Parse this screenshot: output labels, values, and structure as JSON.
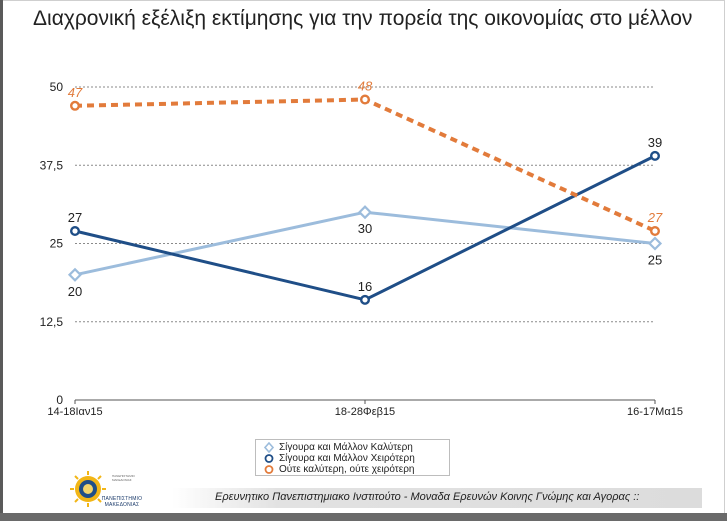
{
  "title": "Διαχρονική εξέλιξη εκτίμησης για την πορεία της οικονομίας στο μέλλον",
  "footer": "Ερευνητικο Πανεπιστημιακο Ινστιτούτο - Μοναδα Ερευνών Κοινης Γνώμης και Αγορας ::",
  "logo": {
    "name": "ΠΑΝΕΠΙΣΤΗΜΙΟ ΜΑΚΕΔΟΝΙΑΣ",
    "line1": "ΠΑΝΕΠΙΣΤΗΜΙΟ",
    "line2": "ΜΑΚΕΔΟΝΙΑΣ"
  },
  "chart_data": {
    "type": "line",
    "title": "Διαχρονική εξέλιξη εκτίμησης για την πορεία της οικονομίας στο μέλλον",
    "categories": [
      "14-18Ιαν15",
      "18-28Φεβ15",
      "16-17Μα15"
    ],
    "ylim": [
      0,
      50
    ],
    "yticks": [
      0,
      12.5,
      25,
      37.5,
      50
    ],
    "ytick_labels": [
      "0",
      "12,5",
      "25",
      "37,5",
      "50"
    ],
    "grid": true,
    "legend_position": "bottom-center",
    "series": [
      {
        "name": "Σίγουρα και Μάλλον Καλύτερη",
        "values": [
          20,
          30,
          25
        ],
        "labels": [
          "20",
          "30",
          "25"
        ],
        "color": "#9cbcdc",
        "marker": "diamond",
        "dashed": false,
        "label_pos": [
          "below",
          "below",
          "below"
        ],
        "italic": false
      },
      {
        "name": "Σίγουρα και Μάλλον Χειρότερη",
        "values": [
          27,
          16,
          39
        ],
        "labels": [
          "27",
          "16",
          "39"
        ],
        "color": "#1f4e87",
        "marker": "circle",
        "dashed": false,
        "label_pos": [
          "above",
          "above",
          "above"
        ],
        "italic": false
      },
      {
        "name": "Ούτε καλύτερη, ούτε χειρότερη",
        "values": [
          47,
          48,
          27
        ],
        "labels": [
          "47",
          "48",
          "27"
        ],
        "color": "#e27b3b",
        "marker": "circle",
        "dashed": true,
        "label_pos": [
          "above",
          "above",
          "above"
        ],
        "italic": true
      }
    ]
  }
}
